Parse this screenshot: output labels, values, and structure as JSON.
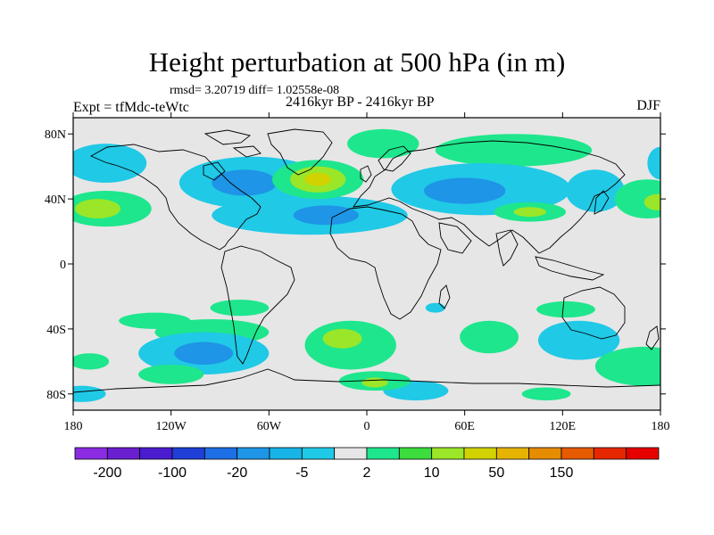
{
  "chart_data": {
    "type": "heatmap",
    "title": "Height perturbation at 500 hPa (in m)",
    "subtitle": "rmsd= 3.20719 diff= 1.02558e-08",
    "experiment_label": "Expt = tfMdc-teWtc",
    "period_label": "2416kyr BP - 2416kyr BP",
    "season": "DJF",
    "xlim": [
      -180,
      180
    ],
    "ylim": [
      -90,
      90
    ],
    "x_ticks": [
      {
        "value": -180,
        "label": "180"
      },
      {
        "value": -120,
        "label": "120W"
      },
      {
        "value": -60,
        "label": "60W"
      },
      {
        "value": 0,
        "label": "0"
      },
      {
        "value": 60,
        "label": "60E"
      },
      {
        "value": 120,
        "label": "120E"
      },
      {
        "value": 180,
        "label": "180"
      }
    ],
    "y_ticks": [
      {
        "value": 80,
        "label": "80N"
      },
      {
        "value": 40,
        "label": "40N"
      },
      {
        "value": 0,
        "label": "0"
      },
      {
        "value": -40,
        "label": "40S"
      },
      {
        "value": -80,
        "label": "80S"
      }
    ],
    "colorbar": {
      "colors": [
        "#8b2be2",
        "#6a1fd1",
        "#4b1ccf",
        "#1f3fd6",
        "#1e6ee6",
        "#1e95e6",
        "#18b4e8",
        "#20c9e6",
        "#e6e6e6",
        "#1ee68c",
        "#3cdc3c",
        "#9be628",
        "#d2d200",
        "#e6b400",
        "#e68c00",
        "#e65a00",
        "#e62800",
        "#e60000"
      ],
      "labels": [
        {
          "after_box": 1,
          "text": "-200"
        },
        {
          "after_box": 3,
          "text": "-100"
        },
        {
          "after_box": 5,
          "text": "-20"
        },
        {
          "after_box": 7,
          "text": "-5"
        },
        {
          "after_box": 9,
          "text": "2"
        },
        {
          "after_box": 11,
          "text": "10"
        },
        {
          "after_box": 13,
          "text": "50"
        },
        {
          "after_box": 15,
          "text": "150"
        }
      ]
    },
    "anomaly_regions": [
      {
        "name": "north-america-neg",
        "lon": -70,
        "lat": 50,
        "rx": 45,
        "ry": 16,
        "level": -5
      },
      {
        "name": "north-america-core",
        "lon": -75,
        "lat": 50,
        "rx": 20,
        "ry": 8,
        "level": -20
      },
      {
        "name": "alaska-neg",
        "lon": -160,
        "lat": 62,
        "rx": 25,
        "ry": 12,
        "level": -5
      },
      {
        "name": "north-pacific-pos",
        "lon": -160,
        "lat": 34,
        "rx": 28,
        "ry": 11,
        "level": 2
      },
      {
        "name": "north-pacific-core",
        "lon": -165,
        "lat": 34,
        "rx": 14,
        "ry": 6,
        "level": 10
      },
      {
        "name": "atlantic-neg",
        "lon": -35,
        "lat": 30,
        "rx": 60,
        "ry": 12,
        "level": -5
      },
      {
        "name": "atlantic-core",
        "lon": -25,
        "lat": 30,
        "rx": 20,
        "ry": 6,
        "level": -20
      },
      {
        "name": "north-atlantic-pos",
        "lon": -30,
        "lat": 52,
        "rx": 28,
        "ry": 12,
        "level": 2
      },
      {
        "name": "north-atlantic-core",
        "lon": -30,
        "lat": 52,
        "rx": 17,
        "ry": 8,
        "level": 10
      },
      {
        "name": "north-atlantic-peak",
        "lon": -30,
        "lat": 52,
        "rx": 8,
        "ry": 4,
        "level": 50
      },
      {
        "name": "arctic-pos",
        "lon": 10,
        "lat": 74,
        "rx": 22,
        "ry": 9,
        "level": 2
      },
      {
        "name": "arctic-pos-east",
        "lon": 90,
        "lat": 70,
        "rx": 48,
        "ry": 10,
        "level": 2
      },
      {
        "name": "eurasia-neg",
        "lon": 70,
        "lat": 46,
        "rx": 55,
        "ry": 16,
        "level": -5
      },
      {
        "name": "eurasia-core",
        "lon": 60,
        "lat": 45,
        "rx": 25,
        "ry": 8,
        "level": -20
      },
      {
        "name": "asia-pos",
        "lon": 100,
        "lat": 32,
        "rx": 22,
        "ry": 6,
        "level": 2
      },
      {
        "name": "asia-pos-core",
        "lon": 100,
        "lat": 32,
        "rx": 10,
        "ry": 3,
        "level": 10
      },
      {
        "name": "west-pacific-neg",
        "lon": 140,
        "lat": 45,
        "rx": 18,
        "ry": 13,
        "level": -5
      },
      {
        "name": "east-pacific-pos",
        "lon": 172,
        "lat": 40,
        "rx": 20,
        "ry": 12,
        "level": 2
      },
      {
        "name": "east-pacific-core",
        "lon": 178,
        "lat": 38,
        "rx": 8,
        "ry": 5,
        "level": 10
      },
      {
        "name": "far-east-neg",
        "lon": 180,
        "lat": 62,
        "rx": 8,
        "ry": 10,
        "level": -5
      },
      {
        "name": "south-pacific-pos",
        "lon": -130,
        "lat": -35,
        "rx": 22,
        "ry": 5,
        "level": 2
      },
      {
        "name": "south-america-pos",
        "lon": -78,
        "lat": -27,
        "rx": 18,
        "ry": 5,
        "level": 2
      },
      {
        "name": "south-atlantic-pos",
        "lon": -95,
        "lat": -42,
        "rx": 35,
        "ry": 8,
        "level": 2
      },
      {
        "name": "south-america-neg",
        "lon": -100,
        "lat": -55,
        "rx": 40,
        "ry": 13,
        "level": -5
      },
      {
        "name": "south-america-core",
        "lon": -100,
        "lat": -55,
        "rx": 18,
        "ry": 7,
        "level": -20
      },
      {
        "name": "southern-ocean-pos",
        "lon": -10,
        "lat": -50,
        "rx": 28,
        "ry": 15,
        "level": 2
      },
      {
        "name": "southern-ocean-core",
        "lon": -15,
        "lat": -46,
        "rx": 12,
        "ry": 6,
        "level": 10
      },
      {
        "name": "madagascar-neg",
        "lon": 42,
        "lat": -27,
        "rx": 6,
        "ry": 3,
        "level": -5
      },
      {
        "name": "indian-ocean-pos",
        "lon": 75,
        "lat": -45,
        "rx": 18,
        "ry": 10,
        "level": 2
      },
      {
        "name": "australia-neg",
        "lon": 130,
        "lat": -47,
        "rx": 25,
        "ry": 12,
        "level": -5
      },
      {
        "name": "australia-pos",
        "lon": 122,
        "lat": -28,
        "rx": 18,
        "ry": 5,
        "level": 2
      },
      {
        "name": "antarctic-pos-east",
        "lon": 170,
        "lat": -63,
        "rx": 30,
        "ry": 12,
        "level": 2
      },
      {
        "name": "antarctic-pos-west",
        "lon": -170,
        "lat": -60,
        "rx": 12,
        "ry": 5,
        "level": 2
      },
      {
        "name": "ross-neg",
        "lon": -175,
        "lat": -80,
        "rx": 15,
        "ry": 5,
        "level": -5
      },
      {
        "name": "weddell-neg",
        "lon": 30,
        "lat": -78,
        "rx": 20,
        "ry": 6,
        "level": -5
      },
      {
        "name": "antarctic-pos",
        "lon": 5,
        "lat": -72,
        "rx": 22,
        "ry": 6,
        "level": 2
      },
      {
        "name": "antarctic-core",
        "lon": 5,
        "lat": -73,
        "rx": 8,
        "ry": 3,
        "level": 10
      },
      {
        "name": "amundsen-pos",
        "lon": -120,
        "lat": -68,
        "rx": 20,
        "ry": 6,
        "level": 2
      },
      {
        "name": "antarctic-pos-south",
        "lon": 110,
        "lat": -80,
        "rx": 15,
        "ry": 4,
        "level": 2
      }
    ]
  }
}
